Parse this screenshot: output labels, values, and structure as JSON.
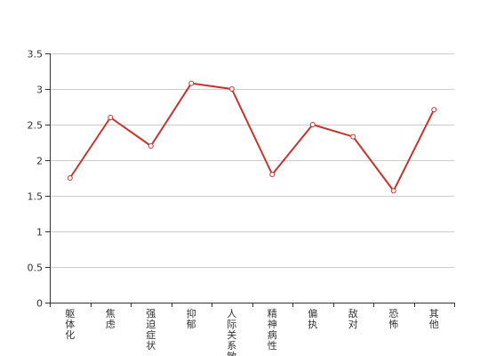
{
  "chart_data": {
    "type": "line",
    "categories": [
      "躯体化",
      "焦虑",
      "强迫症状",
      "抑郁",
      "人际关系敏感",
      "精神病性",
      "偏执",
      "敌对",
      "恐怖",
      "其他"
    ],
    "series": [
      {
        "values": [
          1.75,
          2.6,
          2.2,
          3.08,
          3.0,
          1.8,
          2.5,
          2.33,
          1.57,
          2.71
        ]
      }
    ],
    "ylim": [
      0,
      3.5
    ],
    "y_ticks": [
      0,
      0.5,
      1,
      1.5,
      2,
      2.5,
      3,
      3.5
    ],
    "y_tick_labels": [
      "0",
      "0.5",
      "1",
      "1.5",
      "2",
      "2.5",
      "3",
      "3.5"
    ],
    "grid": true,
    "line_color": "#c23531",
    "grid_color": "#cccccc",
    "axis_color": "#333333"
  }
}
